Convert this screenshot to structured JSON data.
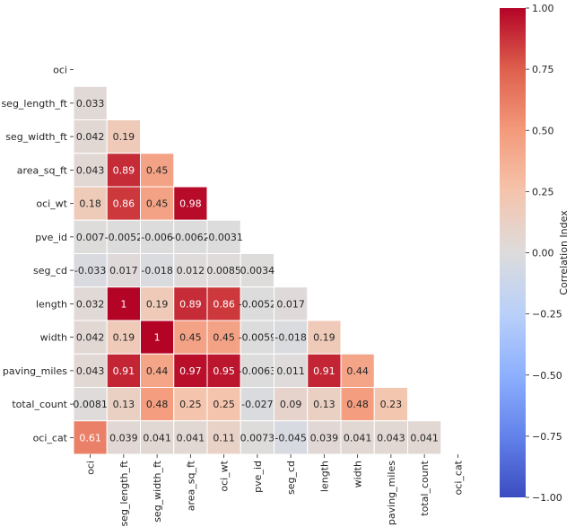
{
  "chart_data": {
    "type": "heatmap",
    "variables": [
      "oci",
      "seg_length_ft",
      "seg_width_ft",
      "area_sq_ft",
      "oci_wt",
      "pve_id",
      "seg_cd",
      "length",
      "width",
      "paving_miles",
      "total_count",
      "oci_cat"
    ],
    "mask": "upper-triangle-including-diagonal",
    "lower_triangle": [
      [],
      [
        "0.033"
      ],
      [
        "0.042",
        "0.19"
      ],
      [
        "0.043",
        "0.89",
        "0.45"
      ],
      [
        "0.18",
        "0.86",
        "0.45",
        "0.98"
      ],
      [
        "0.007",
        "-0.0052",
        "-0.006",
        "-0.0062",
        "-0.0031"
      ],
      [
        "-0.033",
        "0.017",
        "-0.018",
        "0.012",
        "0.0085",
        "0.0034"
      ],
      [
        "0.032",
        "1",
        "0.19",
        "0.89",
        "0.86",
        "-0.0052",
        "0.017"
      ],
      [
        "0.042",
        "0.19",
        "1",
        "0.45",
        "0.45",
        "-0.0059",
        "-0.018",
        "0.19"
      ],
      [
        "0.043",
        "0.91",
        "0.44",
        "0.97",
        "0.95",
        "-0.0063",
        "0.011",
        "0.91",
        "0.44"
      ],
      [
        "0.0081",
        "0.13",
        "0.48",
        "0.25",
        "0.25",
        "-0.027",
        "0.09",
        "0.13",
        "0.48",
        "0.23"
      ],
      [
        "0.61",
        "0.039",
        "0.041",
        "0.041",
        "0.11",
        "0.0073",
        "-0.045",
        "0.039",
        "0.041",
        "0.043",
        "0.041"
      ]
    ],
    "colorbar": {
      "label": "Correlation Index",
      "range": [
        -1.0,
        1.0
      ],
      "ticks": [
        "1.00",
        "0.75",
        "0.50",
        "0.25",
        "0.00",
        "−0.25",
        "−0.50",
        "−0.75",
        "−1.00"
      ],
      "colormap": "coolwarm"
    },
    "grid": false,
    "cell_line_color": "#ffffff"
  }
}
